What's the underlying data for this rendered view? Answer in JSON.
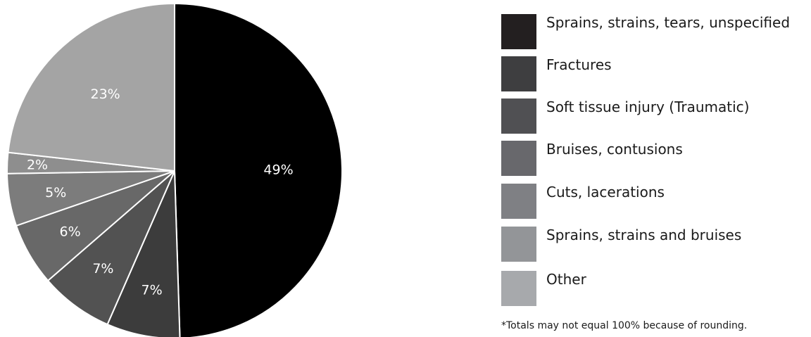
{
  "chart_data": {
    "type": "pie",
    "title": "",
    "slices": [
      {
        "label": "Sprains, strains, tears, unspecified",
        "value": 49,
        "display": "49%",
        "color": "#000000"
      },
      {
        "label": "Fractures",
        "value": 7,
        "display": "7%",
        "color": "#3c3c3c"
      },
      {
        "label": "Soft tissue injury (Traumatic)",
        "value": 7,
        "display": "7%",
        "color": "#525252"
      },
      {
        "label": "Bruises, contusions",
        "value": 6,
        "display": "6%",
        "color": "#686868"
      },
      {
        "label": "Cuts, lacerations",
        "value": 5,
        "display": "5%",
        "color": "#7c7c7c"
      },
      {
        "label": "Sprains, strains and bruises",
        "value": 2,
        "display": "2%",
        "color": "#8e8e8e"
      },
      {
        "label": "Other",
        "value": 23,
        "display": "23%",
        "color": "#a4a4a4"
      }
    ],
    "legend_placement": "right"
  },
  "legend": {
    "items": [
      {
        "label": "Sprains, strains, tears, unspecified",
        "color": "#231f20"
      },
      {
        "label": "Fractures",
        "color": "#3e3e40"
      },
      {
        "label": "Soft tissue injury (Traumatic)",
        "color": "#505053"
      },
      {
        "label": "Bruises, contusions",
        "color": "#68686c"
      },
      {
        "label": "Cuts, lacerations",
        "color": "#7f8084"
      },
      {
        "label": "Sprains, strains and bruises",
        "color": "#939598"
      },
      {
        "label": "Other",
        "color": "#a7a9ac"
      }
    ]
  },
  "footnote": "*Totals may not equal 100% because of rounding."
}
